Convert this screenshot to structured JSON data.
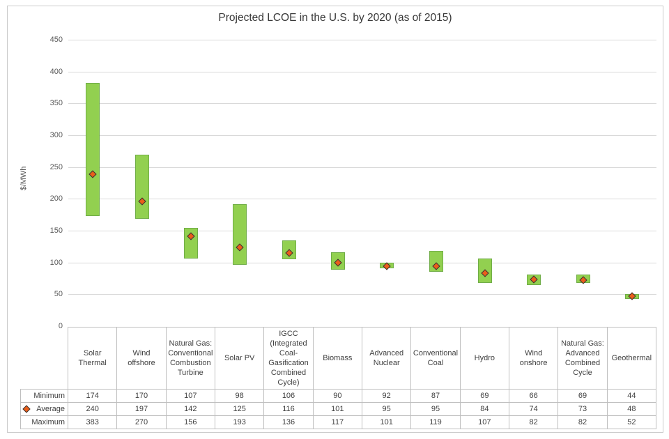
{
  "title": "Projected LCOE in the U.S. by 2020 (as of 2015)",
  "y_axis": {
    "label": "$/MWh",
    "ticks": [
      0,
      50,
      100,
      150,
      200,
      250,
      300,
      350,
      400,
      450
    ]
  },
  "chart_data": {
    "type": "bar",
    "subtype": "floating-range-bars-with-average-markers",
    "title": "Projected LCOE in the U.S. by 2020 (as of 2015)",
    "xlabel": "",
    "ylabel": "$/MWh",
    "ylim": [
      0,
      450
    ],
    "ytick_step": 50,
    "grid": true,
    "legend_position": "data-table-row-labels",
    "categories": [
      "Solar Thermal",
      "Wind offshore",
      "Natural Gas: Conventional Combustion Turbine",
      "Solar PV",
      "IGCC (Integrated Coal-Gasification Combined Cycle)",
      "Biomass",
      "Advanced Nuclear",
      "Conventional Coal",
      "Hydro",
      "Wind onshore",
      "Natural Gas: Advanced Combined Cycle",
      "Geothermal"
    ],
    "series": [
      {
        "name": "Minimum",
        "role": "range-low",
        "values": [
          174,
          170,
          107,
          98,
          106,
          90,
          92,
          87,
          69,
          66,
          69,
          44
        ]
      },
      {
        "name": "Average",
        "role": "marker",
        "marker": "diamond",
        "values": [
          240,
          197,
          142,
          125,
          116,
          101,
          95,
          95,
          84,
          74,
          73,
          48
        ]
      },
      {
        "name": "Maximum",
        "role": "range-high",
        "values": [
          383,
          270,
          156,
          193,
          136,
          117,
          101,
          119,
          107,
          82,
          82,
          52
        ]
      }
    ]
  },
  "colors": {
    "bar_fill": "#92d050",
    "bar_border": "#70ad47",
    "marker_fill": "#ea5e1a",
    "marker_border": "#343434",
    "gridline": "#d9d9d9",
    "table_border": "#bfbfbf",
    "text": "#404040"
  }
}
